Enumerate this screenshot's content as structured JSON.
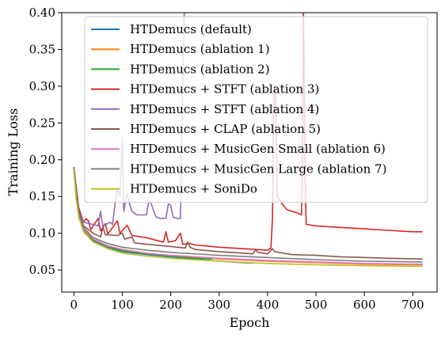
{
  "chart_data": {
    "type": "line",
    "title": "",
    "xlabel": "Epoch",
    "ylabel": "Training Loss",
    "xlim": [
      -25,
      750
    ],
    "ylim": [
      0.02,
      0.4
    ],
    "xticks": [
      "0",
      "100",
      "200",
      "300",
      "400",
      "500",
      "600",
      "700"
    ],
    "yticks": [
      "0.05",
      "0.10",
      "0.15",
      "0.20",
      "0.25",
      "0.30",
      "0.35",
      "0.40"
    ],
    "grid": false,
    "legend_position": "upper-right",
    "series": [
      {
        "name": "HTDemucs (default)",
        "color": "#1f77b4",
        "points": [
          [
            0,
            0.188
          ],
          [
            5,
            0.15
          ],
          [
            10,
            0.125
          ],
          [
            20,
            0.105
          ],
          [
            40,
            0.09
          ],
          [
            70,
            0.081
          ],
          [
            100,
            0.075
          ],
          [
            150,
            0.071
          ],
          [
            200,
            0.068
          ],
          [
            260,
            0.064
          ],
          [
            300,
            0.062
          ],
          [
            350,
            0.06
          ],
          [
            370,
            0.0595
          ]
        ]
      },
      {
        "name": "HTDemucs (ablation 1)",
        "color": "#ff7f0e",
        "points": [
          [
            0,
            0.185
          ],
          [
            5,
            0.148
          ],
          [
            10,
            0.124
          ],
          [
            20,
            0.104
          ],
          [
            40,
            0.091
          ],
          [
            70,
            0.082
          ],
          [
            100,
            0.077
          ],
          [
            150,
            0.072
          ],
          [
            200,
            0.069
          ],
          [
            300,
            0.065
          ],
          [
            400,
            0.062
          ],
          [
            500,
            0.06
          ],
          [
            600,
            0.058
          ],
          [
            720,
            0.057
          ]
        ]
      },
      {
        "name": "HTDemucs (ablation 2)",
        "color": "#2ca02c",
        "points": [
          [
            0,
            0.186
          ],
          [
            5,
            0.149
          ],
          [
            10,
            0.125
          ],
          [
            20,
            0.105
          ],
          [
            40,
            0.091
          ],
          [
            70,
            0.082
          ],
          [
            100,
            0.076
          ],
          [
            150,
            0.072
          ],
          [
            200,
            0.069
          ],
          [
            250,
            0.066
          ],
          [
            285,
            0.065
          ]
        ]
      },
      {
        "name": "HTDemucs + STFT (ablation 3)",
        "color": "#d62728",
        "points": [
          [
            0,
            0.19
          ],
          [
            10,
            0.135
          ],
          [
            20,
            0.115
          ],
          [
            25,
            0.12
          ],
          [
            30,
            0.117
          ],
          [
            35,
            0.105
          ],
          [
            50,
            0.12
          ],
          [
            55,
            0.103
          ],
          [
            65,
            0.113
          ],
          [
            70,
            0.099
          ],
          [
            90,
            0.117
          ],
          [
            95,
            0.1
          ],
          [
            110,
            0.111
          ],
          [
            120,
            0.097
          ],
          [
            150,
            0.094
          ],
          [
            185,
            0.088
          ],
          [
            190,
            0.102
          ],
          [
            195,
            0.088
          ],
          [
            210,
            0.09
          ],
          [
            220,
            0.1
          ],
          [
            225,
            0.085
          ],
          [
            240,
            0.086
          ],
          [
            250,
            0.084
          ],
          [
            300,
            0.081
          ],
          [
            350,
            0.079
          ],
          [
            400,
            0.077
          ],
          [
            407,
            0.08
          ],
          [
            410,
            0.12
          ],
          [
            412,
            0.27
          ],
          [
            415,
            0.3
          ],
          [
            417,
            0.275
          ],
          [
            420,
            0.15
          ],
          [
            430,
            0.14
          ],
          [
            440,
            0.132
          ],
          [
            460,
            0.128
          ],
          [
            470,
            0.125
          ],
          [
            472,
            0.2
          ],
          [
            474,
            0.4
          ],
          [
            476,
            0.3
          ],
          [
            478,
            0.15
          ],
          [
            480,
            0.112
          ],
          [
            500,
            0.11
          ],
          [
            550,
            0.108
          ],
          [
            600,
            0.106
          ],
          [
            650,
            0.104
          ],
          [
            700,
            0.102
          ],
          [
            720,
            0.102
          ]
        ]
      },
      {
        "name": "HTDemucs + STFT (ablation 4)",
        "color": "#9467bd",
        "points": [
          [
            0,
            0.19
          ],
          [
            10,
            0.13
          ],
          [
            20,
            0.115
          ],
          [
            40,
            0.112
          ],
          [
            50,
            0.11
          ],
          [
            55,
            0.13
          ],
          [
            60,
            0.11
          ],
          [
            75,
            0.115
          ],
          [
            80,
            0.112
          ],
          [
            85,
            0.14
          ],
          [
            90,
            0.16
          ],
          [
            95,
            0.15
          ],
          [
            100,
            0.23
          ],
          [
            103,
            0.13
          ],
          [
            110,
            0.155
          ],
          [
            115,
            0.14
          ],
          [
            120,
            0.13
          ],
          [
            130,
            0.125
          ],
          [
            140,
            0.125
          ],
          [
            150,
            0.125
          ],
          [
            155,
            0.145
          ],
          [
            160,
            0.14
          ],
          [
            165,
            0.13
          ],
          [
            170,
            0.122
          ],
          [
            180,
            0.12
          ],
          [
            190,
            0.12
          ],
          [
            195,
            0.14
          ],
          [
            200,
            0.138
          ],
          [
            205,
            0.122
          ],
          [
            215,
            0.12
          ],
          [
            220,
            0.12
          ],
          [
            222,
            0.2
          ],
          [
            225,
            0.3
          ],
          [
            228,
            0.4
          ],
          [
            230,
            0.4
          ]
        ]
      },
      {
        "name": "HTDemucs + CLAP (ablation 5)",
        "color": "#8c564b",
        "points": [
          [
            0,
            0.19
          ],
          [
            10,
            0.13
          ],
          [
            20,
            0.11
          ],
          [
            40,
            0.1
          ],
          [
            55,
            0.095
          ],
          [
            60,
            0.108
          ],
          [
            65,
            0.098
          ],
          [
            90,
            0.097
          ],
          [
            100,
            0.1
          ],
          [
            105,
            0.092
          ],
          [
            120,
            0.095
          ],
          [
            125,
            0.087
          ],
          [
            150,
            0.085
          ],
          [
            200,
            0.082
          ],
          [
            230,
            0.08
          ],
          [
            235,
            0.088
          ],
          [
            240,
            0.081
          ],
          [
            250,
            0.078
          ],
          [
            300,
            0.075
          ],
          [
            350,
            0.073
          ],
          [
            370,
            0.072
          ],
          [
            375,
            0.078
          ],
          [
            380,
            0.074
          ],
          [
            400,
            0.072
          ],
          [
            410,
            0.079
          ],
          [
            415,
            0.075
          ],
          [
            450,
            0.071
          ],
          [
            500,
            0.07
          ],
          [
            550,
            0.068
          ],
          [
            600,
            0.067
          ],
          [
            650,
            0.066
          ],
          [
            720,
            0.065
          ]
        ]
      },
      {
        "name": "HTDemucs + MusicGen Small (ablation 6)",
        "color": "#e377c2",
        "points": [
          [
            0,
            0.187
          ],
          [
            5,
            0.15
          ],
          [
            10,
            0.126
          ],
          [
            20,
            0.106
          ],
          [
            40,
            0.092
          ],
          [
            70,
            0.083
          ],
          [
            100,
            0.078
          ],
          [
            150,
            0.073
          ],
          [
            200,
            0.07
          ],
          [
            300,
            0.066
          ],
          [
            400,
            0.063
          ],
          [
            500,
            0.061
          ],
          [
            600,
            0.059
          ],
          [
            720,
            0.058
          ]
        ]
      },
      {
        "name": "HTDemucs + MusicGen Large (ablation 7)",
        "color": "#7f7f7f",
        "points": [
          [
            0,
            0.188
          ],
          [
            5,
            0.152
          ],
          [
            10,
            0.128
          ],
          [
            20,
            0.108
          ],
          [
            40,
            0.094
          ],
          [
            70,
            0.086
          ],
          [
            100,
            0.081
          ],
          [
            150,
            0.077
          ],
          [
            200,
            0.074
          ],
          [
            300,
            0.07
          ],
          [
            400,
            0.067
          ],
          [
            500,
            0.064
          ],
          [
            600,
            0.062
          ],
          [
            720,
            0.061
          ]
        ]
      },
      {
        "name": "HTDemucs + SoniDo",
        "color": "#bcbd22",
        "points": [
          [
            0,
            0.186
          ],
          [
            5,
            0.147
          ],
          [
            10,
            0.122
          ],
          [
            20,
            0.102
          ],
          [
            40,
            0.088
          ],
          [
            70,
            0.079
          ],
          [
            100,
            0.073
          ],
          [
            150,
            0.069
          ],
          [
            200,
            0.066
          ],
          [
            300,
            0.062
          ],
          [
            400,
            0.059
          ],
          [
            500,
            0.057
          ],
          [
            600,
            0.056
          ],
          [
            720,
            0.055
          ]
        ]
      }
    ]
  }
}
